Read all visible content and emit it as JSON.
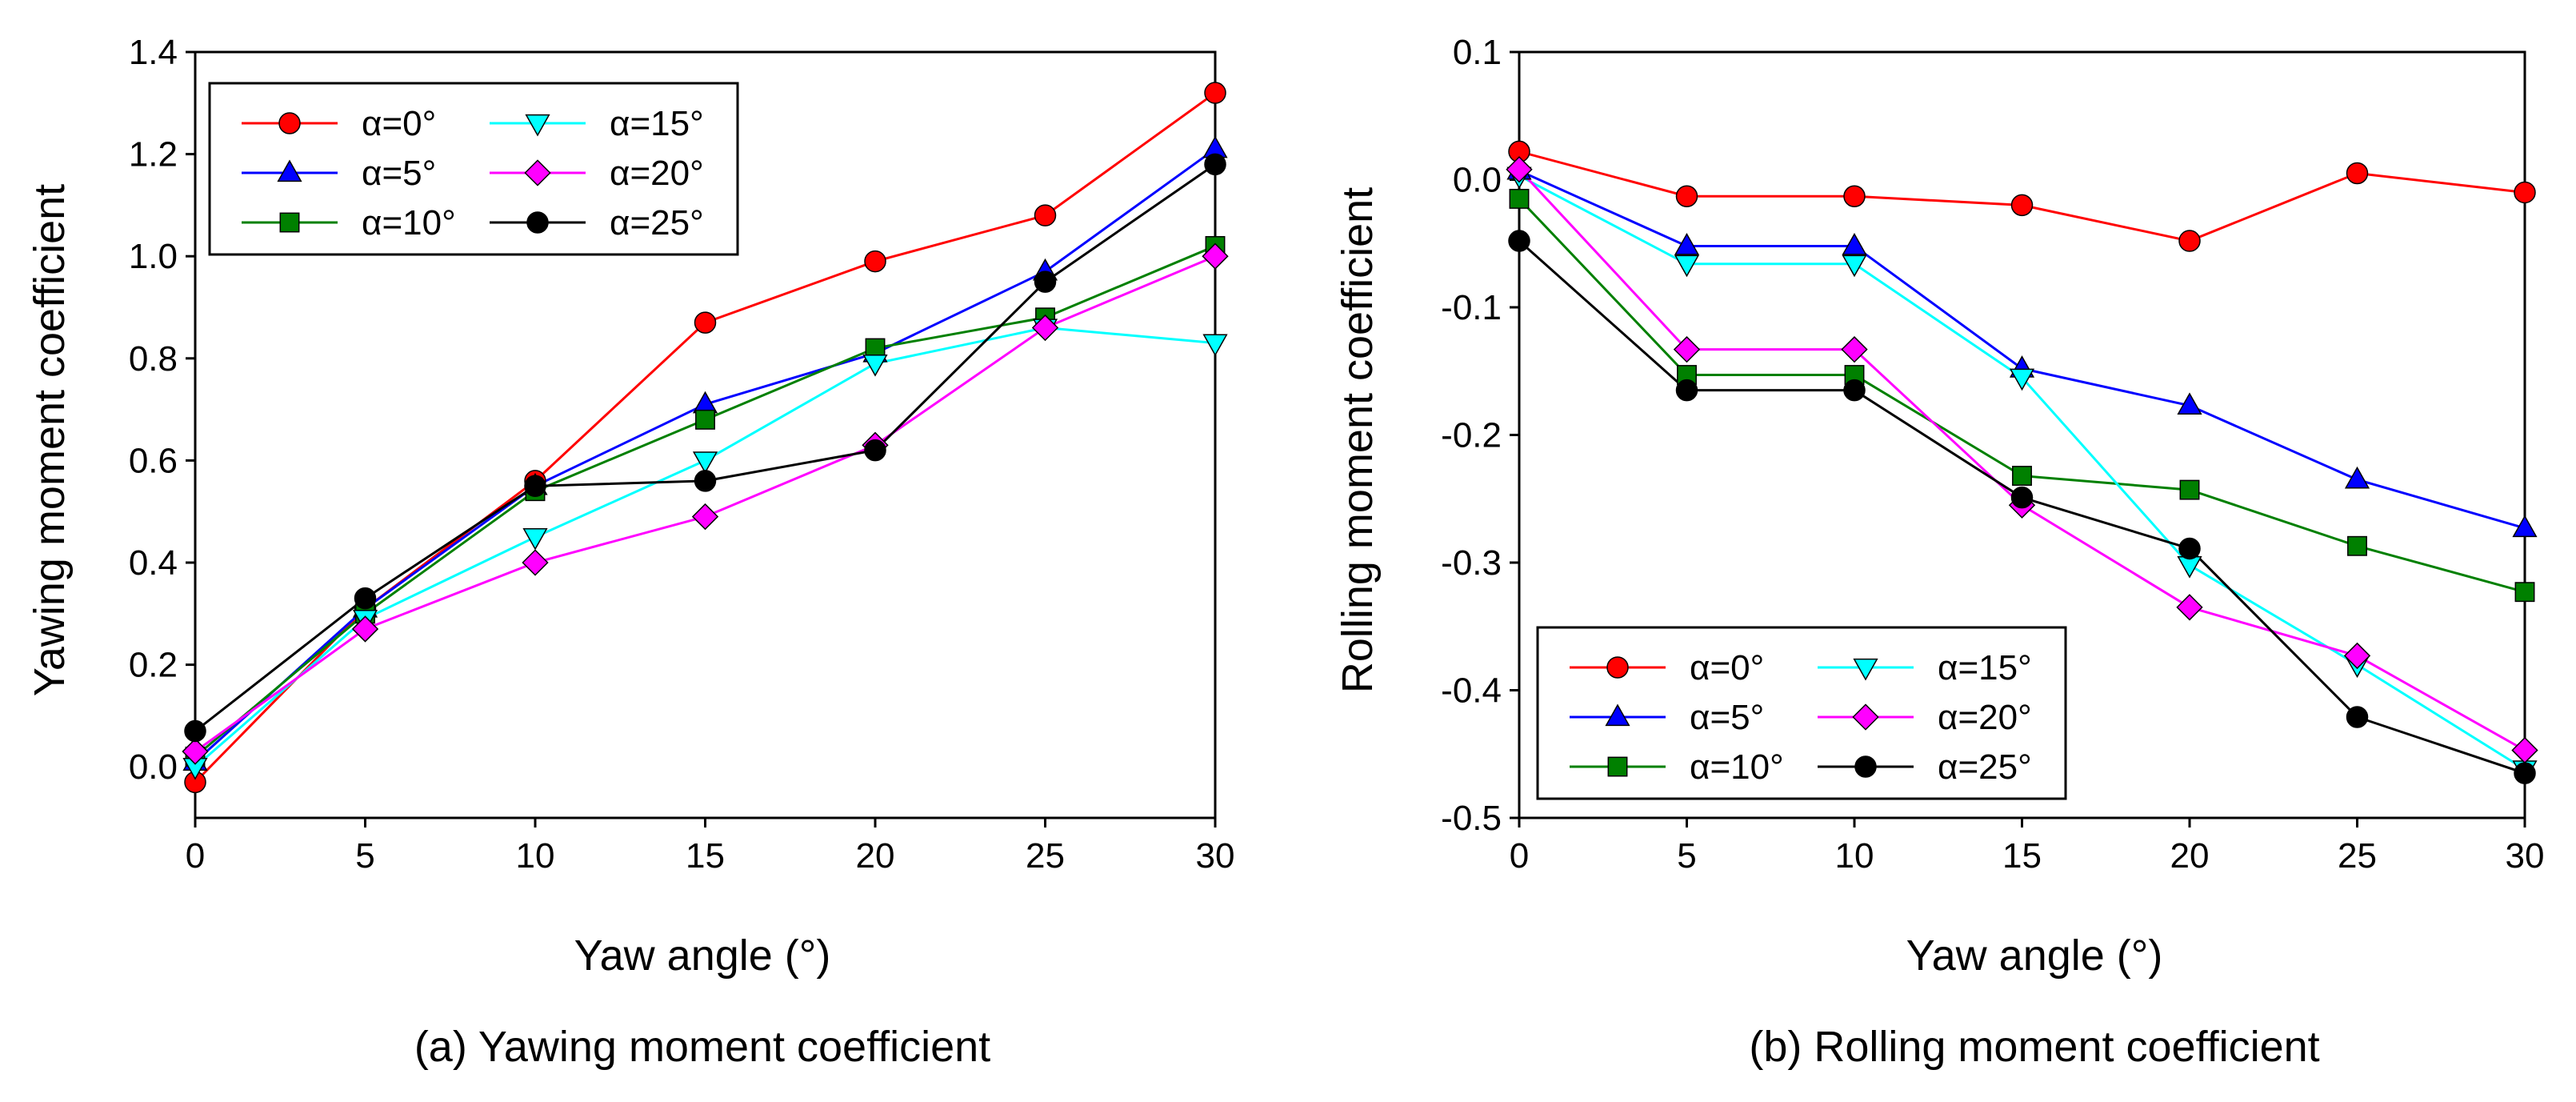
{
  "chart_data": [
    {
      "type": "line",
      "caption": "(a) Yawing moment coefficient",
      "xlabel": "Yaw angle (°)",
      "ylabel": "Yawing moment coefficient",
      "x": [
        0,
        5,
        10,
        15,
        20,
        25,
        30
      ],
      "xticks": [
        "0",
        "5",
        "10",
        "15",
        "20",
        "25",
        "30"
      ],
      "xlim": [
        0,
        30
      ],
      "ylim": [
        -0.1,
        1.4
      ],
      "yticks": [
        "0.0",
        "0.2",
        "0.4",
        "0.6",
        "0.8",
        "1.0",
        "1.2",
        "1.4"
      ],
      "grid": false,
      "legend_position": "top-left",
      "series": [
        {
          "name": "α=0°",
          "color": "#FF0000",
          "marker": "circle",
          "values": [
            -0.03,
            0.31,
            0.56,
            0.87,
            0.99,
            1.08,
            1.32
          ]
        },
        {
          "name": "α=5°",
          "color": "#0000FF",
          "marker": "triangle-up",
          "values": [
            0.01,
            0.31,
            0.55,
            0.71,
            0.81,
            0.97,
            1.21
          ]
        },
        {
          "name": "α=10°",
          "color": "#008000",
          "marker": "square",
          "values": [
            0.02,
            0.3,
            0.54,
            0.68,
            0.82,
            0.88,
            1.02
          ]
        },
        {
          "name": "α=15°",
          "color": "#00FFFF",
          "marker": "triangle-down",
          "values": [
            0.0,
            0.29,
            0.45,
            0.6,
            0.79,
            0.86,
            0.83
          ]
        },
        {
          "name": "α=20°",
          "color": "#FF00FF",
          "marker": "diamond",
          "values": [
            0.03,
            0.27,
            0.4,
            0.49,
            0.63,
            0.86,
            1.0
          ]
        },
        {
          "name": "α=25°",
          "color": "#000000",
          "marker": "circle",
          "values": [
            0.07,
            0.33,
            0.55,
            0.56,
            0.62,
            0.95,
            1.18
          ]
        }
      ]
    },
    {
      "type": "line",
      "caption": "(b) Rolling moment coefficient",
      "xlabel": "Yaw angle (°)",
      "ylabel": "Rolling moment coefficient",
      "x": [
        0,
        5,
        10,
        15,
        20,
        25,
        30
      ],
      "xticks": [
        "0",
        "5",
        "10",
        "15",
        "20",
        "25",
        "30"
      ],
      "xlim": [
        0,
        30
      ],
      "ylim": [
        -0.5,
        0.1
      ],
      "yticks": [
        "-0.5",
        "-0.4",
        "-0.3",
        "-0.2",
        "-0.1",
        "0.0",
        "0.1"
      ],
      "grid": false,
      "legend_position": "bottom-left",
      "series": [
        {
          "name": "α=0°",
          "color": "#FF0000",
          "marker": "circle",
          "values": [
            0.022,
            -0.013,
            -0.013,
            -0.02,
            -0.048,
            0.005,
            -0.01
          ]
        },
        {
          "name": "α=5°",
          "color": "#0000FF",
          "marker": "triangle-up",
          "values": [
            0.007,
            -0.052,
            -0.052,
            -0.148,
            -0.177,
            -0.235,
            -0.273
          ]
        },
        {
          "name": "α=10°",
          "color": "#008000",
          "marker": "square",
          "values": [
            -0.015,
            -0.153,
            -0.153,
            -0.232,
            -0.243,
            -0.287,
            -0.323
          ]
        },
        {
          "name": "α=15°",
          "color": "#00FFFF",
          "marker": "triangle-down",
          "values": [
            0.003,
            -0.066,
            -0.066,
            -0.155,
            -0.302,
            -0.38,
            -0.462
          ]
        },
        {
          "name": "α=20°",
          "color": "#FF00FF",
          "marker": "diamond",
          "values": [
            0.008,
            -0.133,
            -0.133,
            -0.255,
            -0.335,
            -0.373,
            -0.447
          ]
        },
        {
          "name": "α=25°",
          "color": "#000000",
          "marker": "circle",
          "values": [
            -0.048,
            -0.165,
            -0.165,
            -0.249,
            -0.289,
            -0.421,
            -0.465
          ]
        }
      ]
    }
  ]
}
